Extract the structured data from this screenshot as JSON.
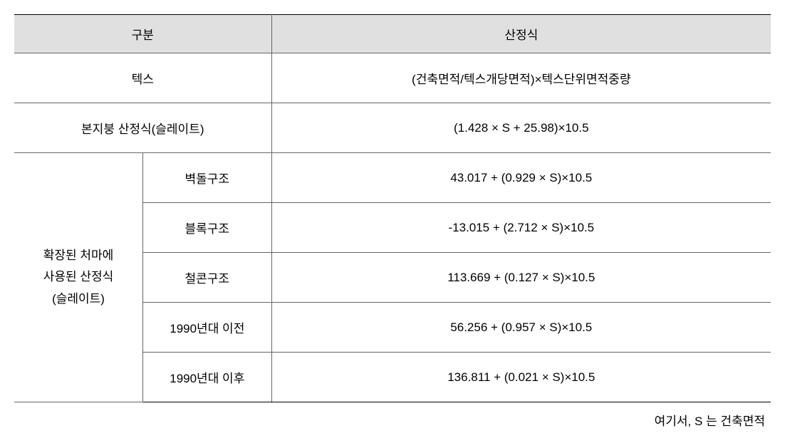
{
  "table": {
    "header": {
      "col1": "구분",
      "col2": "산정식"
    },
    "rows": {
      "tex": {
        "label": "텍스",
        "formula": "(건축면적/텍스개당면적)×텍스단위면적중량"
      },
      "main_roof": {
        "label": "본지붕 산정식(슬레이트)",
        "formula": "(1.428 × S + 25.98)×10.5"
      },
      "extended_eaves": {
        "group_label": "확장된 처마에\n사용된 산정식\n(슬레이트)",
        "items": [
          {
            "sub_label": "벽돌구조",
            "formula": "43.017 + (0.929 × S)×10.5"
          },
          {
            "sub_label": "블록구조",
            "formula": "-13.015 + (2.712 × S)×10.5"
          },
          {
            "sub_label": "철콘구조",
            "formula": "113.669 + (0.127 × S)×10.5"
          },
          {
            "sub_label": "1990년대 이전",
            "formula": "56.256 + (0.957 × S)×10.5"
          },
          {
            "sub_label": "1990년대 이후",
            "formula": "136.811 + (0.021 × S)×10.5"
          }
        ]
      }
    },
    "footnote": "여기서, S 는 건축면적"
  },
  "styling": {
    "header_bg": "#e0e0e0",
    "border_color": "#666666",
    "outer_border_color": "#000000",
    "text_color": "#000000",
    "font_size": 17,
    "cell_padding": 22,
    "header_padding": 14
  }
}
